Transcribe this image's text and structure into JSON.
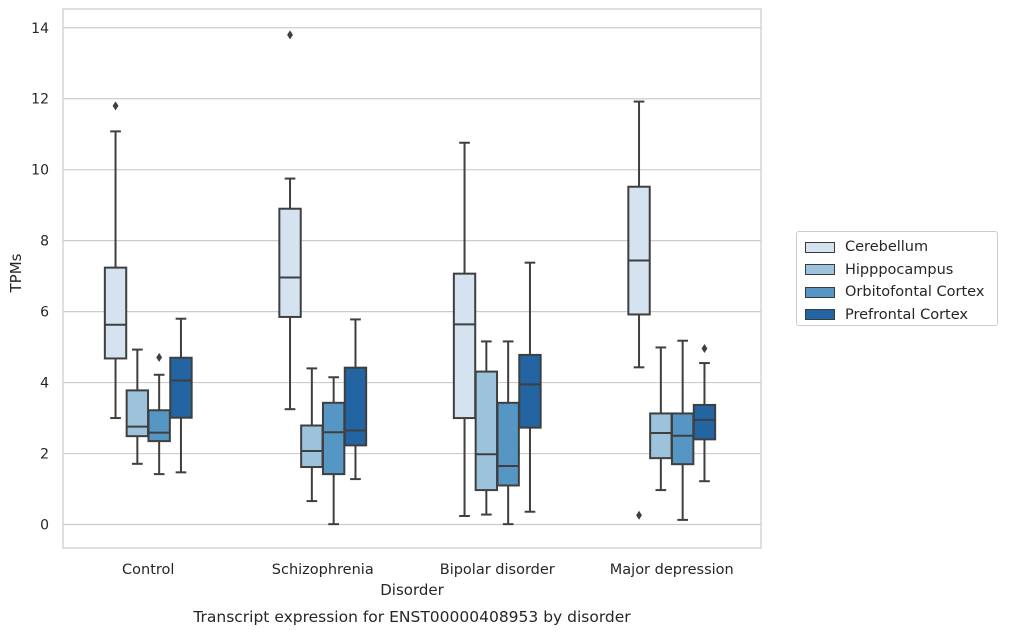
{
  "caption": "Transcript expression for ENST00000408953 by disorder",
  "chart_data": {
    "type": "box",
    "xlabel": "Disorder",
    "ylabel": "TPMs",
    "ylim": [
      -0.65,
      14.5
    ],
    "yticks": [
      0,
      2,
      4,
      6,
      8,
      10,
      12,
      14
    ],
    "grid": "horizontal",
    "legend_position": "right",
    "categories": [
      "Control",
      "Schizophrenia",
      "Bipolar disorder",
      "Major depression"
    ],
    "series": [
      {
        "name": "Cerebellum",
        "color": "#d5e3f1",
        "boxes": [
          {
            "whislo": 3.0,
            "q1": 4.68,
            "med": 5.63,
            "q3": 7.24,
            "whishi": 11.08,
            "fliers": [
              11.8
            ]
          },
          {
            "whislo": 3.25,
            "q1": 5.85,
            "med": 6.96,
            "q3": 8.9,
            "whishi": 9.75,
            "fliers": [
              13.8
            ]
          },
          {
            "whislo": 0.24,
            "q1": 3.0,
            "med": 5.64,
            "q3": 7.07,
            "whishi": 10.76,
            "fliers": []
          },
          {
            "whislo": 4.43,
            "q1": 5.92,
            "med": 7.44,
            "q3": 9.52,
            "whishi": 11.92,
            "fliers": [
              0.26
            ]
          }
        ]
      },
      {
        "name": "Hipppocampus",
        "color": "#9cc2dc",
        "boxes": [
          {
            "whislo": 1.71,
            "q1": 2.49,
            "med": 2.76,
            "q3": 3.78,
            "whishi": 4.93,
            "fliers": []
          },
          {
            "whislo": 0.66,
            "q1": 1.62,
            "med": 2.07,
            "q3": 2.79,
            "whishi": 4.4,
            "fliers": []
          },
          {
            "whislo": 0.28,
            "q1": 0.97,
            "med": 1.98,
            "q3": 4.31,
            "whishi": 5.16,
            "fliers": []
          },
          {
            "whislo": 0.97,
            "q1": 1.87,
            "med": 2.58,
            "q3": 3.13,
            "whishi": 4.99,
            "fliers": []
          }
        ]
      },
      {
        "name": "Orbitofontal Cortex",
        "color": "#5596c5",
        "boxes": [
          {
            "whislo": 1.42,
            "q1": 2.35,
            "med": 2.59,
            "q3": 3.22,
            "whishi": 4.22,
            "fliers": [
              4.71
            ]
          },
          {
            "whislo": 0.01,
            "q1": 1.42,
            "med": 2.6,
            "q3": 3.43,
            "whishi": 4.15,
            "fliers": []
          },
          {
            "whislo": 0.01,
            "q1": 1.1,
            "med": 1.65,
            "q3": 3.43,
            "whishi": 5.16,
            "fliers": []
          },
          {
            "whislo": 0.13,
            "q1": 1.7,
            "med": 2.5,
            "q3": 3.13,
            "whishi": 5.18,
            "fliers": []
          }
        ]
      },
      {
        "name": "Prefrontal Cortex",
        "color": "#2364a2",
        "boxes": [
          {
            "whislo": 1.47,
            "q1": 3.01,
            "med": 4.06,
            "q3": 4.7,
            "whishi": 5.8,
            "fliers": []
          },
          {
            "whislo": 1.28,
            "q1": 2.23,
            "med": 2.65,
            "q3": 4.42,
            "whishi": 5.78,
            "fliers": []
          },
          {
            "whislo": 0.36,
            "q1": 2.73,
            "med": 3.95,
            "q3": 4.78,
            "whishi": 7.38,
            "fliers": []
          },
          {
            "whislo": 1.22,
            "q1": 2.4,
            "med": 2.95,
            "q3": 3.37,
            "whishi": 4.55,
            "fliers": [
              4.96
            ]
          }
        ]
      }
    ]
  }
}
